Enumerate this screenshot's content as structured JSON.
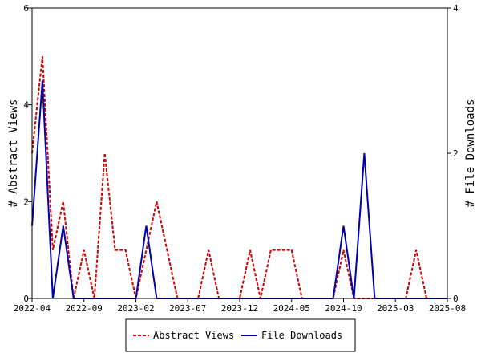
{
  "chart_data": {
    "type": "line",
    "ylabel": "# Abstract Views",
    "y2label": "# File Downloads",
    "xlim": [
      "2022-04",
      "2025-08"
    ],
    "ylim": [
      0,
      6
    ],
    "y2lim": [
      0,
      4
    ],
    "x_ticks": [
      "2022-04",
      "2022-09",
      "2023-02",
      "2023-07",
      "2023-12",
      "2024-05",
      "2024-10",
      "2025-03",
      "2025-08"
    ],
    "y_ticks": [
      "0",
      "2",
      "4",
      "6"
    ],
    "y2_ticks": [
      "0",
      "2",
      "4"
    ],
    "grid": false,
    "legend_position": "bottom",
    "series": [
      {
        "name": "Abstract Views",
        "axis": "left",
        "color": "#cc0000",
        "dash": "dashed",
        "points": [
          [
            "2022-04",
            3
          ],
          [
            "2022-05",
            5
          ],
          [
            "2022-06",
            1
          ],
          [
            "2022-07",
            2
          ],
          [
            "2022-08",
            0
          ],
          [
            "2022-09",
            1
          ],
          [
            "2022-10",
            0
          ],
          [
            "2022-11",
            3
          ],
          [
            "2022-12",
            1
          ],
          [
            "2023-01",
            1
          ],
          [
            "2023-02",
            0
          ],
          [
            "2023-03",
            1
          ],
          [
            "2023-04",
            2
          ],
          [
            "2023-05",
            1
          ],
          [
            "2023-06",
            0
          ],
          [
            "2023-07",
            0
          ],
          [
            "2023-08",
            0
          ],
          [
            "2023-09",
            1
          ],
          [
            "2023-10",
            0
          ],
          [
            "2023-11",
            0
          ],
          [
            "2023-12",
            0
          ],
          [
            "2024-01",
            1
          ],
          [
            "2024-02",
            0
          ],
          [
            "2024-03",
            1
          ],
          [
            "2024-04",
            1
          ],
          [
            "2024-05",
            1
          ],
          [
            "2024-06",
            0
          ],
          [
            "2024-07",
            0
          ],
          [
            "2024-08",
            0
          ],
          [
            "2024-09",
            0
          ],
          [
            "2024-10",
            1
          ],
          [
            "2024-11",
            0
          ],
          [
            "2024-12",
            0
          ],
          [
            "2025-01",
            0
          ],
          [
            "2025-02",
            0
          ],
          [
            "2025-03",
            0
          ],
          [
            "2025-04",
            0
          ],
          [
            "2025-05",
            1
          ],
          [
            "2025-06",
            0
          ],
          [
            "2025-07",
            0
          ],
          [
            "2025-08",
            0
          ]
        ]
      },
      {
        "name": "File Downloads",
        "axis": "right",
        "color": "#0000aa",
        "dash": "solid",
        "points": [
          [
            "2022-04",
            1
          ],
          [
            "2022-05",
            3
          ],
          [
            "2022-06",
            0
          ],
          [
            "2022-07",
            1
          ],
          [
            "2022-08",
            0
          ],
          [
            "2022-09",
            0
          ],
          [
            "2022-10",
            0
          ],
          [
            "2022-11",
            0
          ],
          [
            "2022-12",
            0
          ],
          [
            "2023-01",
            0
          ],
          [
            "2023-02",
            0
          ],
          [
            "2023-03",
            1
          ],
          [
            "2023-04",
            0
          ],
          [
            "2023-05",
            0
          ],
          [
            "2023-06",
            0
          ],
          [
            "2023-07",
            0
          ],
          [
            "2023-08",
            0
          ],
          [
            "2023-09",
            0
          ],
          [
            "2023-10",
            0
          ],
          [
            "2023-11",
            0
          ],
          [
            "2023-12",
            0
          ],
          [
            "2024-01",
            0
          ],
          [
            "2024-02",
            0
          ],
          [
            "2024-03",
            0
          ],
          [
            "2024-04",
            0
          ],
          [
            "2024-05",
            0
          ],
          [
            "2024-06",
            0
          ],
          [
            "2024-07",
            0
          ],
          [
            "2024-08",
            0
          ],
          [
            "2024-09",
            0
          ],
          [
            "2024-10",
            1
          ],
          [
            "2024-11",
            0
          ],
          [
            "2024-12",
            2
          ],
          [
            "2025-01",
            0
          ],
          [
            "2025-02",
            0
          ],
          [
            "2025-03",
            0
          ],
          [
            "2025-04",
            0
          ],
          [
            "2025-05",
            0
          ],
          [
            "2025-06",
            0
          ],
          [
            "2025-07",
            0
          ],
          [
            "2025-08",
            0
          ]
        ]
      }
    ]
  }
}
